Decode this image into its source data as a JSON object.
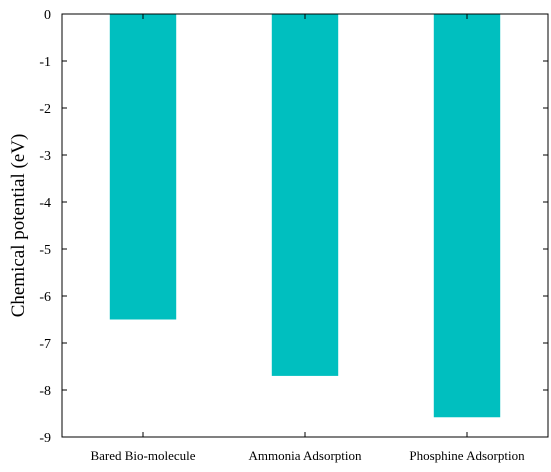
{
  "chart_data": {
    "type": "bar",
    "title": "",
    "xlabel": "",
    "ylabel": "Chemical potential (eV)",
    "categories": [
      "Bared Bio-molecule",
      "Ammonia Adsorption",
      "Phosphine Adsorption"
    ],
    "values": [
      -6.5,
      -7.7,
      -8.58
    ],
    "ylim": [
      -9,
      0
    ],
    "yticks": [
      "0",
      "-1",
      "-2",
      "-3",
      "-4",
      "-5",
      "-6",
      "-7",
      "-8",
      "-9"
    ],
    "ytick_values": [
      0,
      -1,
      -2,
      -3,
      -4,
      -5,
      -6,
      -7,
      -8,
      -9
    ],
    "bar_color": "#00BFBF",
    "grid": false,
    "legend": "none"
  }
}
